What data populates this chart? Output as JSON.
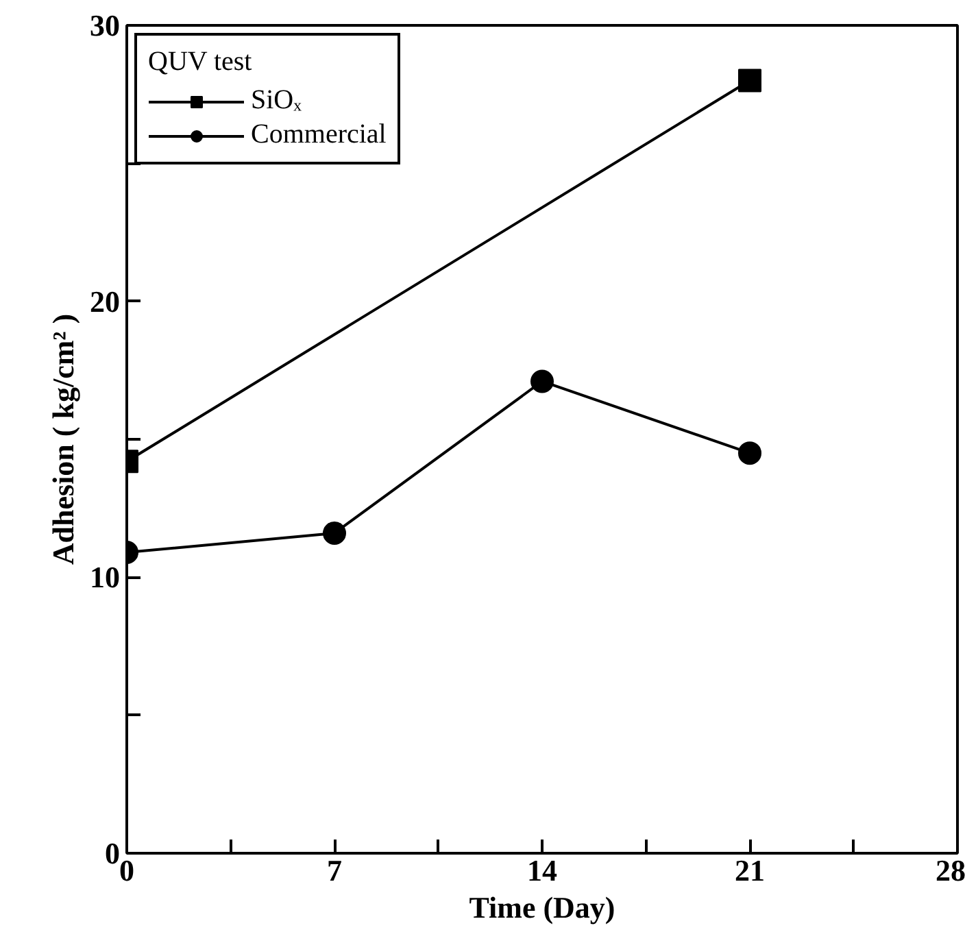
{
  "chart_data": {
    "type": "line",
    "xlabel": "Time (Day)",
    "ylabel": "Adhesion ( kg/cm² )",
    "legend_title": "QUV test",
    "x": [
      0,
      7,
      14,
      21
    ],
    "series": [
      {
        "name": "SiOₓ",
        "color": "#000000",
        "marker": "square",
        "x": [
          0,
          21
        ],
        "values": [
          14.2,
          28
        ]
      },
      {
        "name": "Commercial",
        "color": "#000000",
        "marker": "circle",
        "values": [
          10.9,
          11.6,
          17.1,
          14.5
        ]
      }
    ],
    "xlim": [
      0,
      28
    ],
    "ylim": [
      0,
      30
    ],
    "xticks": [
      0,
      {
        "value": 3.5,
        "label": null
      },
      7,
      {
        "value": 10.5,
        "label": null
      },
      14,
      {
        "value": 17.5,
        "label": null
      },
      21,
      {
        "value": 24.5,
        "label": null
      },
      28
    ],
    "yticks": [
      0,
      {
        "value": 5,
        "label": null
      },
      10,
      {
        "value": 15,
        "label": null
      },
      20,
      {
        "value": 25,
        "label": null
      },
      30
    ],
    "grid": false,
    "legend": "top left",
    "line_style": "solid"
  }
}
